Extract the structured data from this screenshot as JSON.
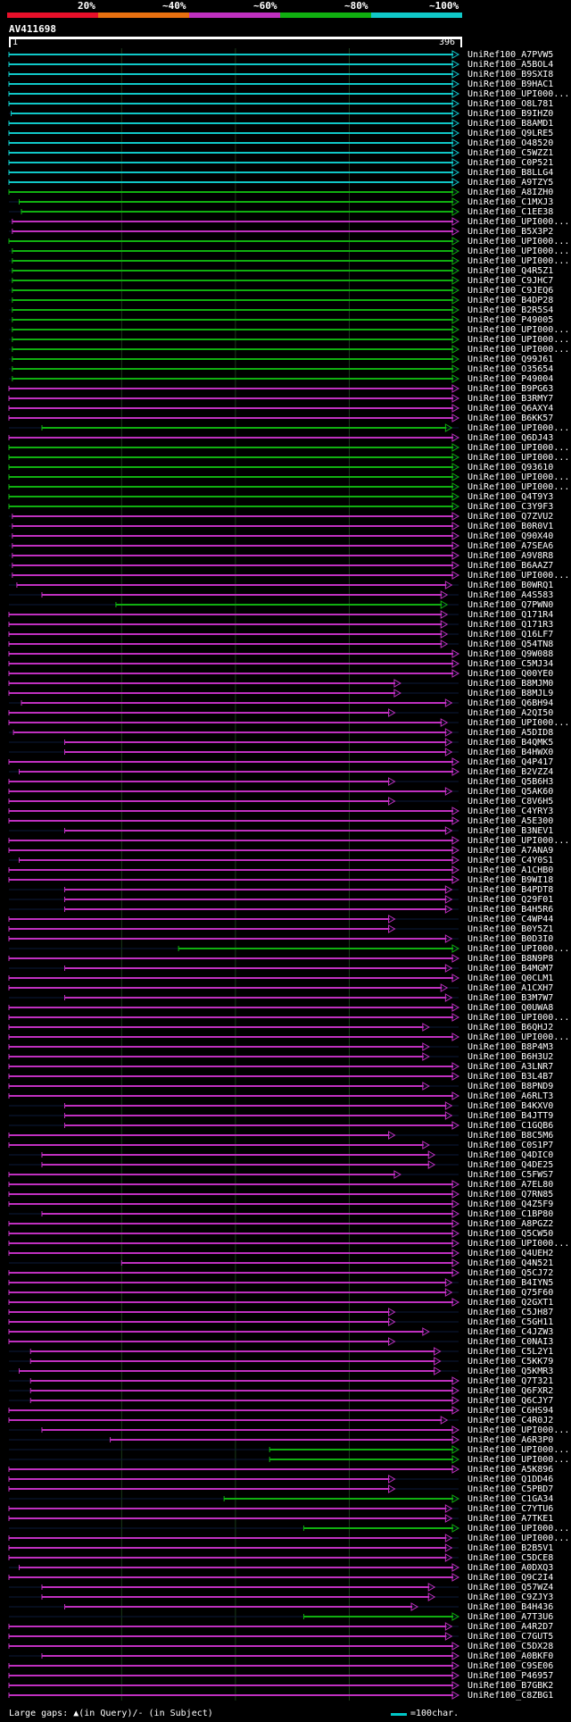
{
  "colors": {
    "red": "#e8102a",
    "orange": "#e87010",
    "magenta": "#c030c0",
    "green": "#10b010",
    "cyan": "#10c8c8",
    "gap": "#2040a0",
    "gridline": "#1a3a1a"
  },
  "legend": [
    {
      "label": "20%",
      "color": "#e8102a"
    },
    {
      "label": "~40%",
      "color": "#e87010"
    },
    {
      "label": "~60%",
      "color": "#c030c0"
    },
    {
      "label": "~80%",
      "color": "#10b010"
    },
    {
      "label": "~100%",
      "color": "#10c8c8"
    }
  ],
  "query": {
    "name": "AV411698",
    "start": "1",
    "end": "396"
  },
  "footer": {
    "text": "Large gaps: ▲(in Query)/- (in Subject)",
    "scale": "=100char."
  },
  "chart_data": {
    "type": "alignment-overview",
    "query_length": 396,
    "hits": [
      {
        "name": "UniRef100_A7PVW5",
        "c": "cyan",
        "s": 1,
        "e": 396
      },
      {
        "name": "UniRef100_A5BOL4",
        "c": "cyan",
        "s": 1,
        "e": 396
      },
      {
        "name": "UniRef100_B9SXI8",
        "c": "cyan",
        "s": 1,
        "e": 396
      },
      {
        "name": "UniRef100_B9HAC1",
        "c": "cyan",
        "s": 1,
        "e": 396
      },
      {
        "name": "UniRef100_UPI000...",
        "c": "cyan",
        "s": 1,
        "e": 396
      },
      {
        "name": "UniRef100_O8L781",
        "c": "cyan",
        "s": 1,
        "e": 396
      },
      {
        "name": "UniRef100_B9IHZ0",
        "c": "cyan",
        "s": 3,
        "e": 396
      },
      {
        "name": "UniRef100_B8AMD1",
        "c": "cyan",
        "s": 1,
        "e": 396
      },
      {
        "name": "UniRef100_Q9LRE5",
        "c": "cyan",
        "s": 1,
        "e": 396
      },
      {
        "name": "UniRef100_O48520",
        "c": "cyan",
        "s": 1,
        "e": 396
      },
      {
        "name": "UniRef100_C5WZZ1",
        "c": "cyan",
        "s": 1,
        "e": 396
      },
      {
        "name": "UniRef100_C0P521",
        "c": "cyan",
        "s": 1,
        "e": 396
      },
      {
        "name": "UniRef100_B8LLG4",
        "c": "cyan",
        "s": 1,
        "e": 396
      },
      {
        "name": "UniRef100_A9TZY5",
        "c": "cyan",
        "s": 1,
        "e": 396
      },
      {
        "name": "UniRef100_A8IZH0",
        "c": "green",
        "s": 1,
        "e": 396
      },
      {
        "name": "UniRef100_C1MXJ3",
        "c": "green",
        "s": 10,
        "e": 396
      },
      {
        "name": "UniRef100_C1EE38",
        "c": "green",
        "s": 12,
        "e": 396
      },
      {
        "name": "UniRef100_UPI000...",
        "c": "magenta",
        "s": 4,
        "e": 396
      },
      {
        "name": "UniRef100_B5X3P2",
        "c": "magenta",
        "s": 4,
        "e": 396
      },
      {
        "name": "UniRef100_UPI000...",
        "c": "green",
        "s": 1,
        "e": 396
      },
      {
        "name": "UniRef100_UPI000...",
        "c": "green",
        "s": 4,
        "e": 396
      },
      {
        "name": "UniRef100_UPI000...",
        "c": "green",
        "s": 4,
        "e": 396
      },
      {
        "name": "UniRef100_Q4R5Z1",
        "c": "green",
        "s": 4,
        "e": 396
      },
      {
        "name": "UniRef100_C9JHC7",
        "c": "green",
        "s": 4,
        "e": 396
      },
      {
        "name": "UniRef100_C9JEQ6",
        "c": "green",
        "s": 4,
        "e": 396
      },
      {
        "name": "UniRef100_B4DP28",
        "c": "green",
        "s": 4,
        "e": 396
      },
      {
        "name": "UniRef100_B2R5S4",
        "c": "green",
        "s": 4,
        "e": 396
      },
      {
        "name": "UniRef100_P49005",
        "c": "green",
        "s": 4,
        "e": 396
      },
      {
        "name": "UniRef100_UPI000...",
        "c": "green",
        "s": 4,
        "e": 396
      },
      {
        "name": "UniRef100_UPI000...",
        "c": "green",
        "s": 4,
        "e": 396
      },
      {
        "name": "UniRef100_UPI000...",
        "c": "green",
        "s": 4,
        "e": 396
      },
      {
        "name": "UniRef100_Q99J61",
        "c": "green",
        "s": 4,
        "e": 396
      },
      {
        "name": "UniRef100_O35654",
        "c": "green",
        "s": 4,
        "e": 396
      },
      {
        "name": "UniRef100_P49004",
        "c": "green",
        "s": 4,
        "e": 396
      },
      {
        "name": "UniRef100_B9PG63",
        "c": "magenta",
        "s": 1,
        "e": 396
      },
      {
        "name": "UniRef100_B3RMY7",
        "c": "magenta",
        "s": 1,
        "e": 396
      },
      {
        "name": "UniRef100_Q6AXY4",
        "c": "magenta",
        "s": 1,
        "e": 396
      },
      {
        "name": "UniRef100_B6KK57",
        "c": "magenta",
        "s": 1,
        "e": 396
      },
      {
        "name": "UniRef100_UPI000...",
        "c": "green",
        "s": 30,
        "e": 390
      },
      {
        "name": "UniRef100_Q6DJ43",
        "c": "magenta",
        "s": 1,
        "e": 396
      },
      {
        "name": "UniRef100_UPI000...",
        "c": "green",
        "s": 1,
        "e": 396
      },
      {
        "name": "UniRef100_UPI000...",
        "c": "green",
        "s": 1,
        "e": 396
      },
      {
        "name": "UniRef100_Q93610",
        "c": "green",
        "s": 1,
        "e": 396
      },
      {
        "name": "UniRef100_UPI000...",
        "c": "green",
        "s": 1,
        "e": 396
      },
      {
        "name": "UniRef100_UPI000...",
        "c": "green",
        "s": 1,
        "e": 396
      },
      {
        "name": "UniRef100_Q4T9Y3",
        "c": "green",
        "s": 1,
        "e": 396
      },
      {
        "name": "UniRef100_C3Y9F3",
        "c": "green",
        "s": 1,
        "e": 396
      },
      {
        "name": "UniRef100_Q7ZVU2",
        "c": "magenta",
        "s": 4,
        "e": 396
      },
      {
        "name": "UniRef100_B0R0V1",
        "c": "magenta",
        "s": 4,
        "e": 396
      },
      {
        "name": "UniRef100_Q90X40",
        "c": "magenta",
        "s": 4,
        "e": 396
      },
      {
        "name": "UniRef100_A7SEA6",
        "c": "magenta",
        "s": 4,
        "e": 396
      },
      {
        "name": "UniRef100_A9V8R8",
        "c": "magenta",
        "s": 4,
        "e": 396
      },
      {
        "name": "UniRef100_B6AAZ7",
        "c": "magenta",
        "s": 4,
        "e": 396
      },
      {
        "name": "UniRef100_UPI000...",
        "c": "magenta",
        "s": 4,
        "e": 396
      },
      {
        "name": "UniRef100_B0WRQ1",
        "c": "magenta",
        "s": 8,
        "e": 390
      },
      {
        "name": "UniRef100_A4S583",
        "c": "magenta",
        "s": 30,
        "e": 386
      },
      {
        "name": "UniRef100_Q7PWN0",
        "c": "green",
        "s": 95,
        "e": 386
      },
      {
        "name": "UniRef100_Q171R4",
        "c": "magenta",
        "s": 1,
        "e": 386
      },
      {
        "name": "UniRef100_Q171R3",
        "c": "magenta",
        "s": 1,
        "e": 386
      },
      {
        "name": "UniRef100_Q16LF7",
        "c": "magenta",
        "s": 1,
        "e": 386
      },
      {
        "name": "UniRef100_Q54TN8",
        "c": "magenta",
        "s": 1,
        "e": 386
      },
      {
        "name": "UniRef100_Q9W088",
        "c": "magenta",
        "s": 1,
        "e": 396
      },
      {
        "name": "UniRef100_C5MJ34",
        "c": "magenta",
        "s": 1,
        "e": 396
      },
      {
        "name": "UniRef100_Q00YE0",
        "c": "magenta",
        "s": 1,
        "e": 396
      },
      {
        "name": "UniRef100_B8MJM0",
        "c": "magenta",
        "s": 1,
        "e": 345
      },
      {
        "name": "UniRef100_B8MJL9",
        "c": "magenta",
        "s": 1,
        "e": 345
      },
      {
        "name": "UniRef100_Q6BH94",
        "c": "magenta",
        "s": 12,
        "e": 390
      },
      {
        "name": "UniRef100_A2QI50",
        "c": "magenta",
        "s": 1,
        "e": 340
      },
      {
        "name": "UniRef100_UPI000...",
        "c": "magenta",
        "s": 1,
        "e": 386
      },
      {
        "name": "UniRef100_A5DID8",
        "c": "magenta",
        "s": 5,
        "e": 390
      },
      {
        "name": "UniRef100_B4QMK5",
        "c": "magenta",
        "s": 50,
        "e": 390
      },
      {
        "name": "UniRef100_B4HWX0",
        "c": "magenta",
        "s": 50,
        "e": 390
      },
      {
        "name": "UniRef100_Q4P417",
        "c": "magenta",
        "s": 1,
        "e": 396
      },
      {
        "name": "UniRef100_B2VZZ4",
        "c": "magenta",
        "s": 10,
        "e": 396
      },
      {
        "name": "UniRef100_Q5B6H3",
        "c": "magenta",
        "s": 1,
        "e": 340
      },
      {
        "name": "UniRef100_Q5AK60",
        "c": "magenta",
        "s": 1,
        "e": 390
      },
      {
        "name": "UniRef100_C8V6H5",
        "c": "magenta",
        "s": 1,
        "e": 340
      },
      {
        "name": "UniRef100_C4YRY3",
        "c": "magenta",
        "s": 1,
        "e": 396
      },
      {
        "name": "UniRef100_A5E300",
        "c": "magenta",
        "s": 1,
        "e": 396
      },
      {
        "name": "UniRef100_B3NEV1",
        "c": "magenta",
        "s": 50,
        "e": 390
      },
      {
        "name": "UniRef100_UPI000...",
        "c": "magenta",
        "s": 1,
        "e": 396
      },
      {
        "name": "UniRef100_A7ANA9",
        "c": "magenta",
        "s": 1,
        "e": 396
      },
      {
        "name": "UniRef100_C4Y0S1",
        "c": "magenta",
        "s": 10,
        "e": 396
      },
      {
        "name": "UniRef100_A1CHB0",
        "c": "magenta",
        "s": 1,
        "e": 396
      },
      {
        "name": "UniRef100_B9WI18",
        "c": "magenta",
        "s": 1,
        "e": 396
      },
      {
        "name": "UniRef100_B4PDT8",
        "c": "magenta",
        "s": 50,
        "e": 390
      },
      {
        "name": "UniRef100_Q29F01",
        "c": "magenta",
        "s": 50,
        "e": 390
      },
      {
        "name": "UniRef100_B4H5R6",
        "c": "magenta",
        "s": 50,
        "e": 390
      },
      {
        "name": "UniRef100_C4WP44",
        "c": "magenta",
        "s": 1,
        "e": 340
      },
      {
        "name": "UniRef100_B0Y5Z1",
        "c": "magenta",
        "s": 1,
        "e": 340
      },
      {
        "name": "UniRef100_B0D3I0",
        "c": "magenta",
        "s": 1,
        "e": 390
      },
      {
        "name": "UniRef100_UPI000...",
        "c": "green",
        "s": 150,
        "e": 396
      },
      {
        "name": "UniRef100_B8N9P8",
        "c": "magenta",
        "s": 1,
        "e": 396
      },
      {
        "name": "UniRef100_B4MGM7",
        "c": "magenta",
        "s": 50,
        "e": 390
      },
      {
        "name": "UniRef100_Q0CLM1",
        "c": "magenta",
        "s": 1,
        "e": 396
      },
      {
        "name": "UniRef100_A1CXH7",
        "c": "magenta",
        "s": 1,
        "e": 386
      },
      {
        "name": "UniRef100_B3M7W7",
        "c": "magenta",
        "s": 50,
        "e": 390
      },
      {
        "name": "UniRef100_Q0UWA8",
        "c": "magenta",
        "s": 1,
        "e": 396
      },
      {
        "name": "UniRef100_UPI000...",
        "c": "magenta",
        "s": 1,
        "e": 396
      },
      {
        "name": "UniRef100_B6QHJ2",
        "c": "magenta",
        "s": 1,
        "e": 370
      },
      {
        "name": "UniRef100_UPI000...",
        "c": "magenta",
        "s": 1,
        "e": 396
      },
      {
        "name": "UniRef100_B8P4M3",
        "c": "magenta",
        "s": 1,
        "e": 370
      },
      {
        "name": "UniRef100_B6H3U2",
        "c": "magenta",
        "s": 1,
        "e": 370
      },
      {
        "name": "UniRef100_A3LNR7",
        "c": "magenta",
        "s": 1,
        "e": 396
      },
      {
        "name": "UniRef100_B3L4B7",
        "c": "magenta",
        "s": 1,
        "e": 396
      },
      {
        "name": "UniRef100_B8PND9",
        "c": "magenta",
        "s": 1,
        "e": 370
      },
      {
        "name": "UniRef100_A6RLT3",
        "c": "magenta",
        "s": 1,
        "e": 396
      },
      {
        "name": "UniRef100_B4KXV0",
        "c": "magenta",
        "s": 50,
        "e": 390
      },
      {
        "name": "UniRef100_B4JTT9",
        "c": "magenta",
        "s": 50,
        "e": 390
      },
      {
        "name": "UniRef100_C1GQB6",
        "c": "magenta",
        "s": 50,
        "e": 396
      },
      {
        "name": "UniRef100_B8C5M6",
        "c": "magenta",
        "s": 1,
        "e": 340
      },
      {
        "name": "UniRef100_C0S1P7",
        "c": "magenta",
        "s": 1,
        "e": 370
      },
      {
        "name": "UniRef100_Q4DIC0",
        "c": "magenta",
        "s": 30,
        "e": 375
      },
      {
        "name": "UniRef100_Q4DE25",
        "c": "magenta",
        "s": 30,
        "e": 375
      },
      {
        "name": "UniRef100_C5FWS7",
        "c": "magenta",
        "s": 1,
        "e": 345
      },
      {
        "name": "UniRef100_A7EL80",
        "c": "magenta",
        "s": 1,
        "e": 396
      },
      {
        "name": "UniRef100_Q7RN85",
        "c": "magenta",
        "s": 1,
        "e": 396
      },
      {
        "name": "UniRef100_Q4Z5F9",
        "c": "magenta",
        "s": 1,
        "e": 396
      },
      {
        "name": "UniRef100_C1BP80",
        "c": "magenta",
        "s": 30,
        "e": 396
      },
      {
        "name": "UniRef100_A8PGZ2",
        "c": "magenta",
        "s": 1,
        "e": 396
      },
      {
        "name": "UniRef100_Q5CW50",
        "c": "magenta",
        "s": 1,
        "e": 396
      },
      {
        "name": "UniRef100_UPI000...",
        "c": "magenta",
        "s": 1,
        "e": 396
      },
      {
        "name": "UniRef100_Q4UEH2",
        "c": "magenta",
        "s": 1,
        "e": 396
      },
      {
        "name": "UniRef100_Q4N521",
        "c": "magenta",
        "s": 100,
        "e": 396
      },
      {
        "name": "UniRef100_Q5CJ72",
        "c": "magenta",
        "s": 1,
        "e": 396
      },
      {
        "name": "UniRef100_B4IYN5",
        "c": "magenta",
        "s": 1,
        "e": 390
      },
      {
        "name": "UniRef100_Q75F60",
        "c": "magenta",
        "s": 1,
        "e": 390
      },
      {
        "name": "UniRef100_Q2GXT1",
        "c": "magenta",
        "s": 1,
        "e": 396
      },
      {
        "name": "UniRef100_C5JH87",
        "c": "magenta",
        "s": 1,
        "e": 340
      },
      {
        "name": "UniRef100_C5GH11",
        "c": "magenta",
        "s": 1,
        "e": 340
      },
      {
        "name": "UniRef100_C4JZW3",
        "c": "magenta",
        "s": 1,
        "e": 370
      },
      {
        "name": "UniRef100_C0NAI3",
        "c": "magenta",
        "s": 1,
        "e": 340
      },
      {
        "name": "UniRef100_C5L2Y1",
        "c": "magenta",
        "s": 20,
        "e": 380
      },
      {
        "name": "UniRef100_C5KK79",
        "c": "magenta",
        "s": 20,
        "e": 380
      },
      {
        "name": "UniRef100_Q5KMR3",
        "c": "magenta",
        "s": 10,
        "e": 380
      },
      {
        "name": "UniRef100_Q7T321",
        "c": "magenta",
        "s": 20,
        "e": 396
      },
      {
        "name": "UniRef100_Q6FXR2",
        "c": "magenta",
        "s": 20,
        "e": 396
      },
      {
        "name": "UniRef100_Q6CJY7",
        "c": "magenta",
        "s": 20,
        "e": 396
      },
      {
        "name": "UniRef100_C6HS94",
        "c": "magenta",
        "s": 1,
        "e": 396
      },
      {
        "name": "UniRef100_C4R0J2",
        "c": "magenta",
        "s": 1,
        "e": 386
      },
      {
        "name": "UniRef100_UPI000...",
        "c": "magenta",
        "s": 30,
        "e": 396
      },
      {
        "name": "UniRef100_A6R3P0",
        "c": "magenta",
        "s": 90,
        "e": 396
      },
      {
        "name": "UniRef100_UPI000...",
        "c": "green",
        "s": 230,
        "e": 396
      },
      {
        "name": "UniRef100_UPI000...",
        "c": "green",
        "s": 230,
        "e": 396
      },
      {
        "name": "UniRef100_A5K896",
        "c": "magenta",
        "s": 1,
        "e": 396
      },
      {
        "name": "UniRef100_Q1DD46",
        "c": "magenta",
        "s": 1,
        "e": 340
      },
      {
        "name": "UniRef100_C5PBD7",
        "c": "magenta",
        "s": 1,
        "e": 340
      },
      {
        "name": "UniRef100_C1GA34",
        "c": "green",
        "s": 190,
        "e": 396
      },
      {
        "name": "UniRef100_C7YTU6",
        "c": "magenta",
        "s": 1,
        "e": 390
      },
      {
        "name": "UniRef100_A7TKE1",
        "c": "magenta",
        "s": 1,
        "e": 390
      },
      {
        "name": "UniRef100_UPI000...",
        "c": "green",
        "s": 260,
        "e": 396
      },
      {
        "name": "UniRef100_UPI000...",
        "c": "magenta",
        "s": 1,
        "e": 390
      },
      {
        "name": "UniRef100_B2B5V1",
        "c": "magenta",
        "s": 1,
        "e": 390
      },
      {
        "name": "UniRef100_C5DCE8",
        "c": "magenta",
        "s": 1,
        "e": 390
      },
      {
        "name": "UniRef100_A0DXQ3",
        "c": "magenta",
        "s": 10,
        "e": 396
      },
      {
        "name": "UniRef100_Q9C2I4",
        "c": "magenta",
        "s": 1,
        "e": 396
      },
      {
        "name": "UniRef100_Q57WZ4",
        "c": "magenta",
        "s": 30,
        "e": 375
      },
      {
        "name": "UniRef100_C9ZJY3",
        "c": "magenta",
        "s": 30,
        "e": 375
      },
      {
        "name": "UniRef100_B4H436",
        "c": "magenta",
        "s": 50,
        "e": 360
      },
      {
        "name": "UniRef100_A7T3U6",
        "c": "green",
        "s": 260,
        "e": 396
      },
      {
        "name": "UniRef100_A4R2D7",
        "c": "magenta",
        "s": 1,
        "e": 390
      },
      {
        "name": "UniRef100_C7GUT5",
        "c": "magenta",
        "s": 1,
        "e": 390
      },
      {
        "name": "UniRef100_C5DX28",
        "c": "magenta",
        "s": 1,
        "e": 396
      },
      {
        "name": "UniRef100_A0BKF0",
        "c": "magenta",
        "s": 30,
        "e": 396
      },
      {
        "name": "UniRef100_C9SE06",
        "c": "magenta",
        "s": 1,
        "e": 396
      },
      {
        "name": "UniRef100_P46957",
        "c": "magenta",
        "s": 1,
        "e": 396
      },
      {
        "name": "UniRef100_B7GBK2",
        "c": "magenta",
        "s": 1,
        "e": 396
      },
      {
        "name": "UniRef100_C8ZBG1",
        "c": "magenta",
        "s": 1,
        "e": 396
      }
    ]
  }
}
